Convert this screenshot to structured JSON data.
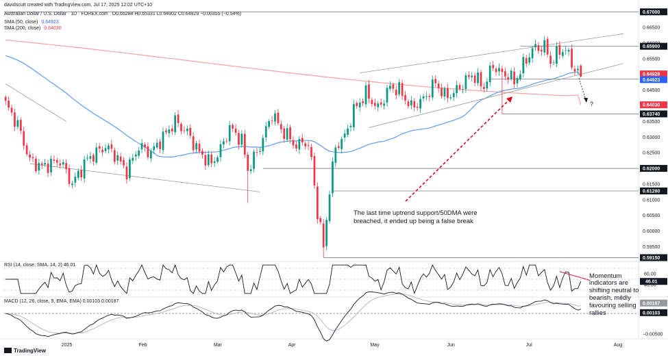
{
  "header": {
    "creator": "davidscutt created with TradingView.com, Jul 17, 2025 12:02 UTC+10",
    "symbol_line": "Australian Dollar / U.S. Dollar · 1D · FOREX.com",
    "ohlc": "O0.65284 H0.65331 L0.64902 C0.64929 −0.00355 (−0.54%)",
    "sma50_label": "SMA (50, close)",
    "sma50_value": "0.64923",
    "sma200_label": "SMA (200, close)",
    "sma200_value": "0.64030"
  },
  "colors": {
    "up": "#089981",
    "down": "#f23645",
    "sma50": "#5b9cf6",
    "sma200": "#f7a1a1",
    "annotation": "#e0001b",
    "trendline": "#9598a1"
  },
  "chart_data": [
    {
      "type": "candlestick",
      "title": "Australian Dollar / U.S. Dollar · 1D · FOREX.com",
      "ylim": [
        0.5905,
        0.6705
      ],
      "y_ticks": [
        "0.67000",
        "0.66500",
        "0.66000",
        "0.65500",
        "0.65000",
        "0.64500",
        "0.64000",
        "0.63500",
        "0.63000",
        "0.62500",
        "0.62000",
        "0.61500",
        "0.61000",
        "0.60500",
        "0.60000",
        "0.59500",
        "0.59000"
      ],
      "x_labels": [
        "2025",
        "Feb",
        "Mar",
        "Apr",
        "May",
        "Jun",
        "Jul",
        "Aug"
      ],
      "series": [
        {
          "name": "SMA (50, close)",
          "value": 0.64923
        },
        {
          "name": "SMA (200, close)",
          "value": 0.6403
        }
      ],
      "horizontal_levels": [
        {
          "label": "0.67000",
          "value": 0.67
        },
        {
          "label": "0.65900",
          "value": 0.659
        },
        {
          "label": "0.64850",
          "value": 0.6485
        },
        {
          "label": "0.63740",
          "value": 0.6374
        },
        {
          "label": "0.62000",
          "value": 0.62
        },
        {
          "label": "0.61280",
          "value": 0.6128
        },
        {
          "label": "0.59150",
          "value": 0.5915
        }
      ],
      "price_tags": [
        {
          "label": "0.64929",
          "value": 0.64929,
          "color": "#f23645"
        },
        {
          "label": "0.64923",
          "value": 0.64923,
          "color": "#2962ff"
        },
        {
          "label": "0.64030",
          "value": 0.6403,
          "color": "#f23645"
        }
      ],
      "annotations": [
        {
          "text": "The last time uptrend support/50DMA were",
          "line": 1
        },
        {
          "text": "breached, it ended up being a false break",
          "line": 2
        },
        {
          "text": "?",
          "line": 0
        }
      ]
    },
    {
      "type": "line",
      "title": "RSI (14, close, SMA, 14, 2) 46.01",
      "ylim": [
        20,
        80
      ],
      "y_ticks": [
        "60.00",
        "40.00"
      ],
      "current_value": "46.01",
      "bands": [
        70,
        30
      ]
    },
    {
      "type": "line",
      "title": "MACD (12, 26, close, 9, EMA, EMA) 0.00103 0.00187",
      "ylim": [
        -0.006,
        0.0035
      ],
      "y_ticks": [
        "0.00000",
        "−0.00500"
      ],
      "macd_value": "0.00103",
      "signal_value": "0.00187"
    }
  ],
  "side_note": {
    "lines": [
      "Momentum",
      "indicators are",
      "shifting neutral to",
      "bearish, mildly",
      "favouring selling",
      "rallies"
    ]
  },
  "footer": {
    "brand": "TradingView"
  }
}
